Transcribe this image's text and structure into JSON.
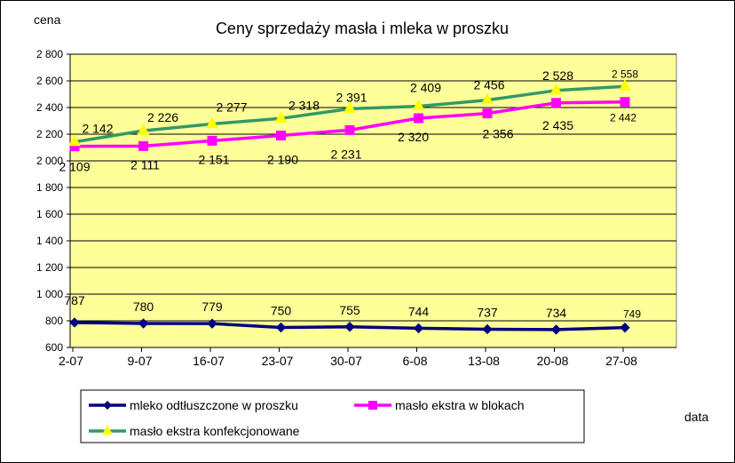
{
  "chart_data": {
    "type": "line",
    "title": "Ceny sprzedaży masła i mleka w proszku",
    "ylabel": "cena",
    "xlabel": "data",
    "ylim": [
      600,
      2800
    ],
    "ytick_step": 200,
    "yticks": [
      "600",
      "800",
      "1 000",
      "1 200",
      "1 400",
      "1 600",
      "1 800",
      "2 000",
      "2 200",
      "2 400",
      "2 600",
      "2 800"
    ],
    "categories": [
      "2-07",
      "9-07",
      "16-07",
      "23-07",
      "30-07",
      "6-08",
      "13-08",
      "20-08",
      "27-08"
    ],
    "series": [
      {
        "name": "mleko odtłuszczone w proszku",
        "color": "#000080",
        "marker": "diamond",
        "values": [
          787,
          780,
          779,
          750,
          755,
          744,
          737,
          734,
          749
        ],
        "labels": [
          "787",
          "780",
          "779",
          "750",
          "755",
          "744",
          "737",
          "734",
          "749"
        ]
      },
      {
        "name": "masło ekstra w blokach",
        "color": "#ff00ff",
        "marker": "square",
        "values": [
          2109,
          2111,
          2151,
          2190,
          2231,
          2320,
          2356,
          2435,
          2442
        ],
        "labels": [
          "2 109",
          "2 111",
          "2 151",
          "2 190",
          "2 231",
          "2 320",
          "2 356",
          "2 435",
          "2 442"
        ]
      },
      {
        "name": "masło ekstra konfekcjonowane",
        "color": "#339966",
        "marker": "triangle",
        "marker_color": "#ffff00",
        "values": [
          2142,
          2226,
          2277,
          2318,
          2391,
          2409,
          2456,
          2528,
          2558
        ],
        "labels": [
          "2 142",
          "2 226",
          "2 277",
          "2 318",
          "2 391",
          "2 409",
          "2 456",
          "2 528",
          "2 558"
        ]
      }
    ],
    "plot_background": "#ffff99",
    "grid": true
  }
}
